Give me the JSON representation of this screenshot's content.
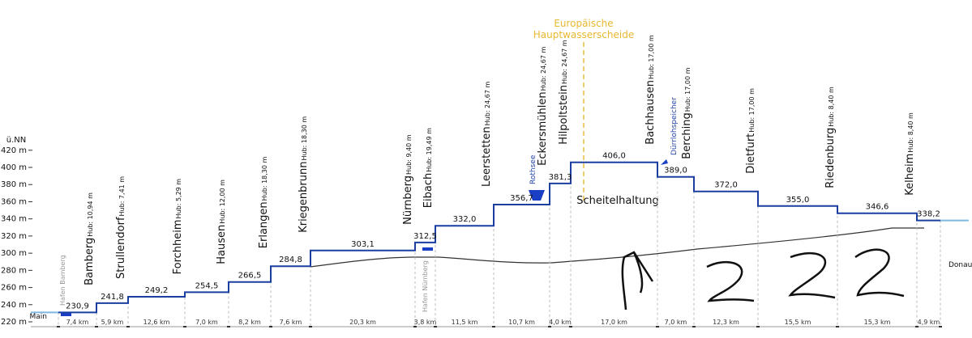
{
  "axis": {
    "unit": "ü.NN",
    "ticks": [
      {
        "value": 220,
        "label": "220 m"
      },
      {
        "value": 240,
        "label": "240 m"
      },
      {
        "value": 260,
        "label": "260 m"
      },
      {
        "value": 280,
        "label": "280 m"
      },
      {
        "value": 300,
        "label": "300 m"
      },
      {
        "value": 320,
        "label": "320 m"
      },
      {
        "value": 340,
        "label": "340 m"
      },
      {
        "value": 360,
        "label": "360 m"
      },
      {
        "value": 380,
        "label": "380 m"
      },
      {
        "value": 400,
        "label": "400 m"
      },
      {
        "value": 420,
        "label": "420 m"
      }
    ]
  },
  "start": "Main",
  "end": "Donau",
  "levels": [
    {
      "value": 230.9,
      "label": "230,9"
    },
    {
      "value": 241.8,
      "label": "241,8"
    },
    {
      "value": 249.2,
      "label": "249,2"
    },
    {
      "value": 254.5,
      "label": "254,5"
    },
    {
      "value": 266.5,
      "label": "266,5"
    },
    {
      "value": 284.8,
      "label": "284,8"
    },
    {
      "value": 303.1,
      "label": "303,1"
    },
    {
      "value": 312.5,
      "label": "312,5"
    },
    {
      "value": 332.0,
      "label": "332,0"
    },
    {
      "value": 356.7,
      "label": "356,7"
    },
    {
      "value": 381.3,
      "label": "381,3"
    },
    {
      "value": 406.0,
      "label": "406,0"
    },
    {
      "value": 389.0,
      "label": "389,0"
    },
    {
      "value": 372.0,
      "label": "372,0"
    },
    {
      "value": 355.0,
      "label": "355,0"
    },
    {
      "value": 346.6,
      "label": "346,6"
    },
    {
      "value": 338.2,
      "label": "338,2"
    }
  ],
  "distances": [
    "7,4 km",
    "5,9 km",
    "12,6 km",
    "7,0 km",
    "8,2 km",
    "7,6 km",
    "20,3 km",
    "3,8 km",
    "11,5 km",
    "10,7 km",
    "4,0 km",
    "17,0 km",
    "7,0 km",
    "12,3 km",
    "15,5 km",
    "15,3 km",
    "4,9 km"
  ],
  "locks": [
    {
      "name": "Bamberg",
      "lift": "Hub: 10,94 m"
    },
    {
      "name": "Strullendorf",
      "lift": "Hub: 7,41 m"
    },
    {
      "name": "Forchheim",
      "lift": "Hub: 5,29 m"
    },
    {
      "name": "Hausen",
      "lift": "Hub: 12,00 m"
    },
    {
      "name": "Erlangen",
      "lift": "Hub: 18,30 m"
    },
    {
      "name": "Kriegenbrunn",
      "lift": "Hub: 18,30 m"
    },
    {
      "name": "Nürnberg",
      "lift": "Hub: 9,40 m"
    },
    {
      "name": "Eibach",
      "lift": "Hub: 19,49 m"
    },
    {
      "name": "Leerstetten",
      "lift": "Hub: 24,67 m"
    },
    {
      "name": "Eckersmühlen",
      "lift": "Hub: 24,67 m"
    },
    {
      "name": "Hilpoltstein",
      "lift": "Hub: 24,67 m"
    },
    {
      "name": "Bachhausen",
      "lift": "Hub: 17,00 m"
    },
    {
      "name": "Berching",
      "lift": "Hub: 17,00 m"
    },
    {
      "name": "Dietfurt",
      "lift": "Hub: 17,00 m"
    },
    {
      "name": "Riedenburg",
      "lift": "Hub: 8,40 m"
    },
    {
      "name": "Kelheim",
      "lift": "Hub: 8,40 m"
    }
  ],
  "annotations": {
    "harbor_bamberg": "Hafen Bamberg",
    "harbor_nuremberg": "Hafen Nürnberg",
    "rothsee": "Rothsee",
    "duerrloh": "Dürrlohspeicher",
    "watershed": [
      "Europäische",
      "Hauptwasserscheide"
    ],
    "summit": "Scheitelhaltung"
  }
}
